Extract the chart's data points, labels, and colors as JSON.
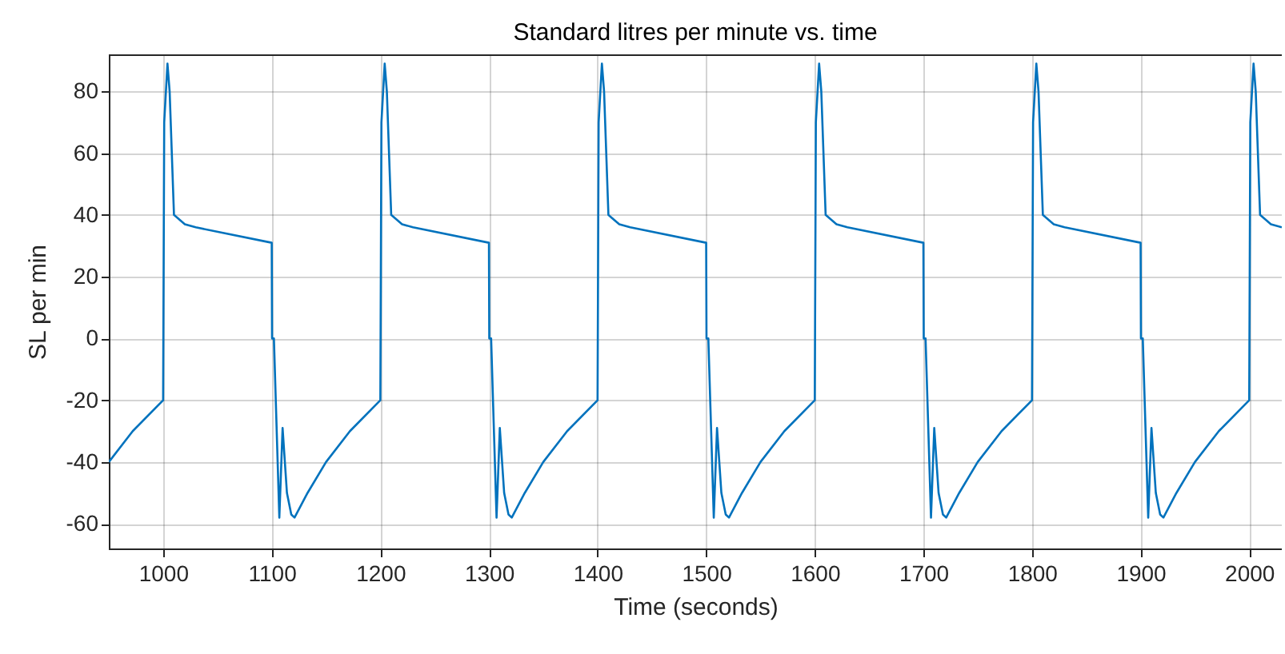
{
  "chart_data": {
    "type": "line",
    "title": "Standard litres per minute vs. time",
    "xlabel": "Time (seconds)",
    "ylabel": "SL per min",
    "series": [
      {
        "color": "#0072bd",
        "x": [
          950,
          972,
          1000,
          1001,
          1004,
          1006,
          1010,
          1020,
          1030,
          1100,
          1100.3,
          1102,
          1107,
          1110,
          1114,
          1118,
          1121,
          1133,
          1150,
          1172,
          1200,
          1201,
          1204,
          1206,
          1210,
          1220,
          1230,
          1300,
          1300.3,
          1302,
          1307,
          1310,
          1314,
          1318,
          1321,
          1333,
          1350,
          1372,
          1400,
          1401,
          1404,
          1406,
          1410,
          1420,
          1430,
          1500,
          1500.3,
          1502,
          1507,
          1510,
          1514,
          1518,
          1521,
          1533,
          1550,
          1572,
          1600,
          1601,
          1604,
          1606,
          1610,
          1620,
          1630,
          1700,
          1700.3,
          1702,
          1707,
          1710,
          1714,
          1718,
          1721,
          1733,
          1750,
          1772,
          1800,
          1801,
          1804,
          1806,
          1810,
          1820,
          1830,
          1900,
          1900.3,
          1902,
          1907,
          1910,
          1914,
          1918,
          1921,
          1933,
          1950,
          1972,
          2000,
          2001,
          2004,
          2006,
          2010,
          2020,
          2030
        ],
        "values": [
          -40,
          -30,
          -20,
          70,
          89,
          80,
          40,
          37,
          36,
          31,
          0,
          0,
          -58,
          -29,
          -50,
          -57,
          -58,
          -50,
          -40,
          -30,
          -20,
          70,
          89,
          80,
          40,
          37,
          36,
          31,
          0,
          0,
          -58,
          -29,
          -50,
          -57,
          -58,
          -50,
          -40,
          -30,
          -20,
          70,
          89,
          80,
          40,
          37,
          36,
          31,
          0,
          0,
          -58,
          -29,
          -50,
          -57,
          -58,
          -50,
          -40,
          -30,
          -20,
          70,
          89,
          80,
          40,
          37,
          36,
          31,
          0,
          0,
          -58,
          -29,
          -50,
          -57,
          -58,
          -50,
          -40,
          -30,
          -20,
          70,
          89,
          80,
          40,
          37,
          36,
          31,
          0,
          0,
          -58,
          -29,
          -50,
          -57,
          -58,
          -50,
          -40,
          -30,
          -20,
          70,
          89,
          80,
          40,
          37,
          36
        ]
      }
    ],
    "xlim": [
      950,
      2030
    ],
    "ylim": [
      -68,
      92
    ],
    "xticks": [
      1000,
      1100,
      1200,
      1300,
      1400,
      1500,
      1600,
      1700,
      1800,
      1900,
      2000
    ],
    "yticks": [
      -60,
      -40,
      -20,
      0,
      20,
      40,
      60,
      80
    ],
    "grid": true
  }
}
